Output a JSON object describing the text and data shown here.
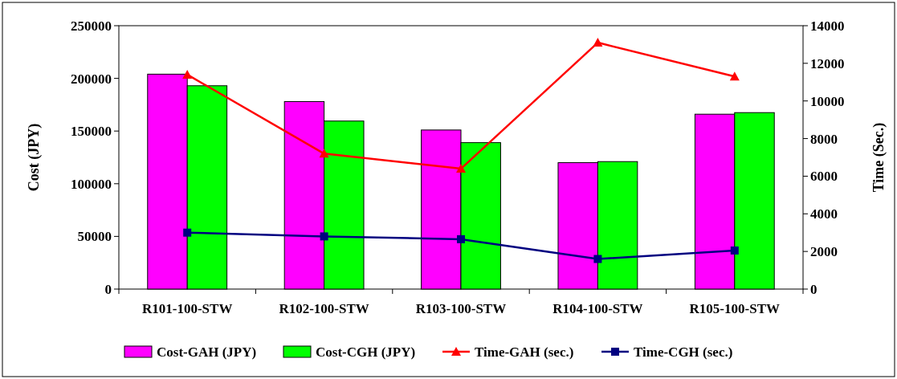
{
  "chart_data": {
    "type": "bar",
    "xlabel": null,
    "ylabel": "Cost (JPY)",
    "y2label": "Time (Sec.)",
    "categories": [
      "R101-100-STW",
      "R102-100-STW",
      "R103-100-STW",
      "R104-100-STW",
      "R105-100-STW"
    ],
    "series": [
      {
        "name": "Cost-GAH (JPY)",
        "color": "#ff00ff",
        "values": [
          204000,
          178000,
          151000,
          120000,
          166000
        ]
      },
      {
        "name": "Cost-CGH (JPY)",
        "color": "#00ff00",
        "values": [
          193000,
          159500,
          139000,
          121000,
          167500
        ]
      },
      {
        "name": "Time-GAH (sec.)",
        "type": "line",
        "axis": "y2",
        "marker": "triangle",
        "color": "#ff0000",
        "values": [
          11400,
          7200,
          6400,
          13100,
          11300
        ]
      },
      {
        "name": "Time-CGH (sec.)",
        "type": "line",
        "axis": "y2",
        "marker": "square",
        "color": "#000080",
        "values": [
          3000,
          2800,
          2650,
          1600,
          2050
        ]
      }
    ],
    "ylim": [
      0,
      250000
    ],
    "yticks": [
      0,
      50000,
      100000,
      150000,
      200000,
      250000
    ],
    "y2lim": [
      0,
      14000
    ],
    "y2ticks": [
      0,
      2000,
      4000,
      6000,
      8000,
      10000,
      12000,
      14000
    ],
    "legend": "bottom",
    "grid": false
  }
}
